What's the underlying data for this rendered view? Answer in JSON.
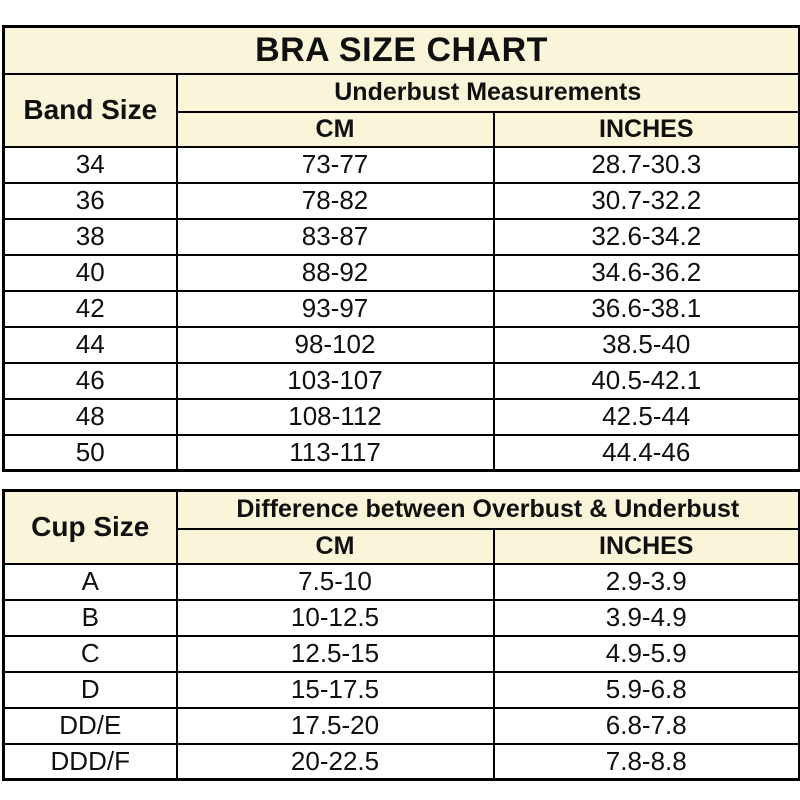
{
  "title": "BRA SIZE CHART",
  "colors": {
    "page_bg": "#ffffff",
    "header_bg": "#faf4d9",
    "border": "#000000",
    "text": "#101010"
  },
  "chart_data": [
    {
      "type": "table",
      "name": "band_size_table",
      "row_header": "Band Size",
      "group_header": "Underbust Measurements",
      "unit_headers": [
        "CM",
        "INCHES"
      ],
      "rows": [
        [
          "34",
          "73-77",
          "28.7-30.3"
        ],
        [
          "36",
          "78-82",
          "30.7-32.2"
        ],
        [
          "38",
          "83-87",
          "32.6-34.2"
        ],
        [
          "40",
          "88-92",
          "34.6-36.2"
        ],
        [
          "42",
          "93-97",
          "36.6-38.1"
        ],
        [
          "44",
          "98-102",
          "38.5-40"
        ],
        [
          "46",
          "103-107",
          "40.5-42.1"
        ],
        [
          "48",
          "108-112",
          "42.5-44"
        ],
        [
          "50",
          "113-117",
          "44.4-46"
        ]
      ]
    },
    {
      "type": "table",
      "name": "cup_size_table",
      "row_header": "Cup Size",
      "group_header": "Difference between Overbust & Underbust",
      "unit_headers": [
        "CM",
        "INCHES"
      ],
      "rows": [
        [
          "A",
          "7.5-10",
          "2.9-3.9"
        ],
        [
          "B",
          "10-12.5",
          "3.9-4.9"
        ],
        [
          "C",
          "12.5-15",
          "4.9-5.9"
        ],
        [
          "D",
          "15-17.5",
          "5.9-6.8"
        ],
        [
          "DD/E",
          "17.5-20",
          "6.8-7.8"
        ],
        [
          "DDD/F",
          "20-22.5",
          "7.8-8.8"
        ]
      ]
    }
  ]
}
